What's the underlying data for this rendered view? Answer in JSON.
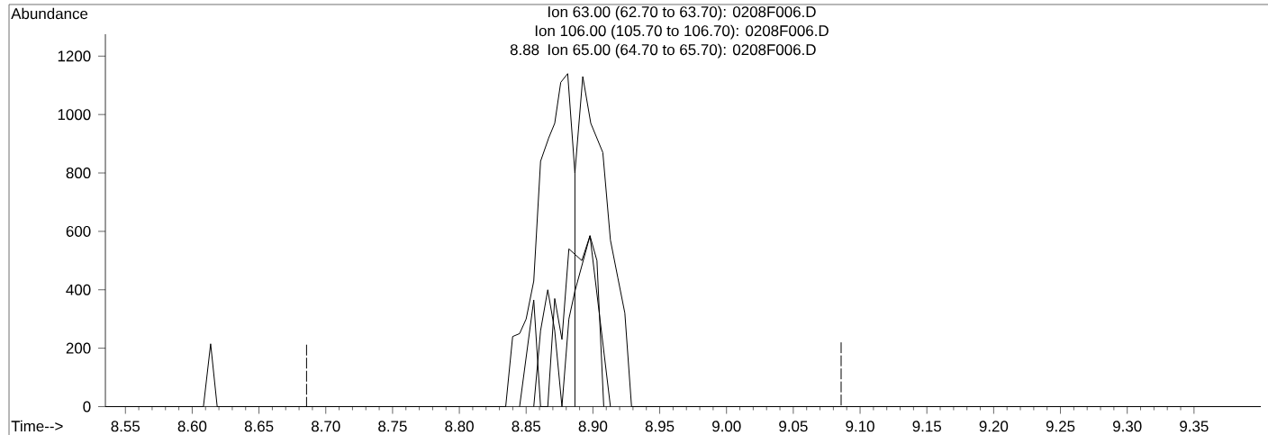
{
  "chart_data": {
    "type": "line",
    "title": "Ion  63.00 (62.70 to 63.70): 0208F006.D",
    "subtitle": "Ion 106.00 (105.70 to 106.70): 0208F006.D",
    "annotations": [
      "Ion  65.00 (64.70 to 65.70): 0208F006.D",
      "8.88"
    ],
    "xlabel": "Time-->",
    "ylabel": "Abundance",
    "xlim": [
      8.535,
      9.4
    ],
    "ylim": [
      0,
      1275
    ],
    "xticks": [
      {
        "value": 8.55,
        "label": "8.55"
      },
      {
        "value": 8.6,
        "label": "8.60"
      },
      {
        "value": 8.65,
        "label": "8.65"
      },
      {
        "value": 8.7,
        "label": "8.70"
      },
      {
        "value": 8.75,
        "label": "8.75"
      },
      {
        "value": 8.8,
        "label": "8.80"
      },
      {
        "value": 8.85,
        "label": "8.85"
      },
      {
        "value": 8.9,
        "label": "8.90"
      },
      {
        "value": 8.95,
        "label": "8.95"
      },
      {
        "value": 9.0,
        "label": "9.00"
      },
      {
        "value": 9.05,
        "label": "9.05"
      },
      {
        "value": 9.1,
        "label": "9.10"
      },
      {
        "value": 9.15,
        "label": "9.15"
      },
      {
        "value": 9.2,
        "label": "9.20"
      },
      {
        "value": 9.25,
        "label": "9.25"
      },
      {
        "value": 9.3,
        "label": "9.30"
      },
      {
        "value": 9.35,
        "label": "9.35"
      }
    ],
    "yticks": [
      0,
      200,
      400,
      600,
      800,
      1000,
      1200
    ],
    "line_style": "solid",
    "series": [
      {
        "color": "#000000",
        "x": [
          8.535,
          8.6084,
          8.6138,
          8.6187,
          8.8347,
          8.8399,
          8.8451,
          8.85,
          8.8557,
          8.8608,
          8.8669,
          8.8714,
          8.8759,
          8.8811,
          8.8865,
          8.8924,
          8.8984,
          8.9074,
          8.9131,
          8.9187,
          8.9239,
          8.9289,
          9.4
        ],
        "values": [
          0,
          0,
          215,
          0,
          0,
          240,
          250,
          300,
          430,
          840,
          920,
          970,
          1110,
          1140,
          800,
          1130,
          970,
          870,
          570,
          440,
          320,
          0,
          0
        ]
      },
      {
        "color": "#000000",
        "x": [
          8.8451,
          8.8557,
          8.8608,
          8.8662,
          8.8714,
          8.8768,
          8.882,
          8.8917,
          8.8978,
          8.903,
          8.9081
        ],
        "values": [
          0,
          365,
          0,
          0,
          370,
          230,
          540,
          500,
          585,
          500,
          0
        ]
      },
      {
        "color": "#000000",
        "x": [
          8.8557,
          8.8608,
          8.8662,
          8.8714,
          8.8768,
          8.882,
          8.8865,
          8.8978,
          8.9131
        ],
        "values": [
          0,
          260,
          400,
          260,
          0,
          300,
          395,
          585,
          0
        ]
      },
      {
        "color": "#000000",
        "x": [
          8.8865,
          8.8865
        ],
        "values": [
          0,
          800
        ]
      },
      {
        "color": "#000000",
        "line_style": "dashed",
        "x": [
          8.6856,
          8.6856
        ],
        "values": [
          212,
          0
        ]
      },
      {
        "color": "#000000",
        "line_style": "dashed",
        "x": [
          9.0858,
          9.0858
        ],
        "values": [
          220,
          0
        ]
      }
    ]
  }
}
